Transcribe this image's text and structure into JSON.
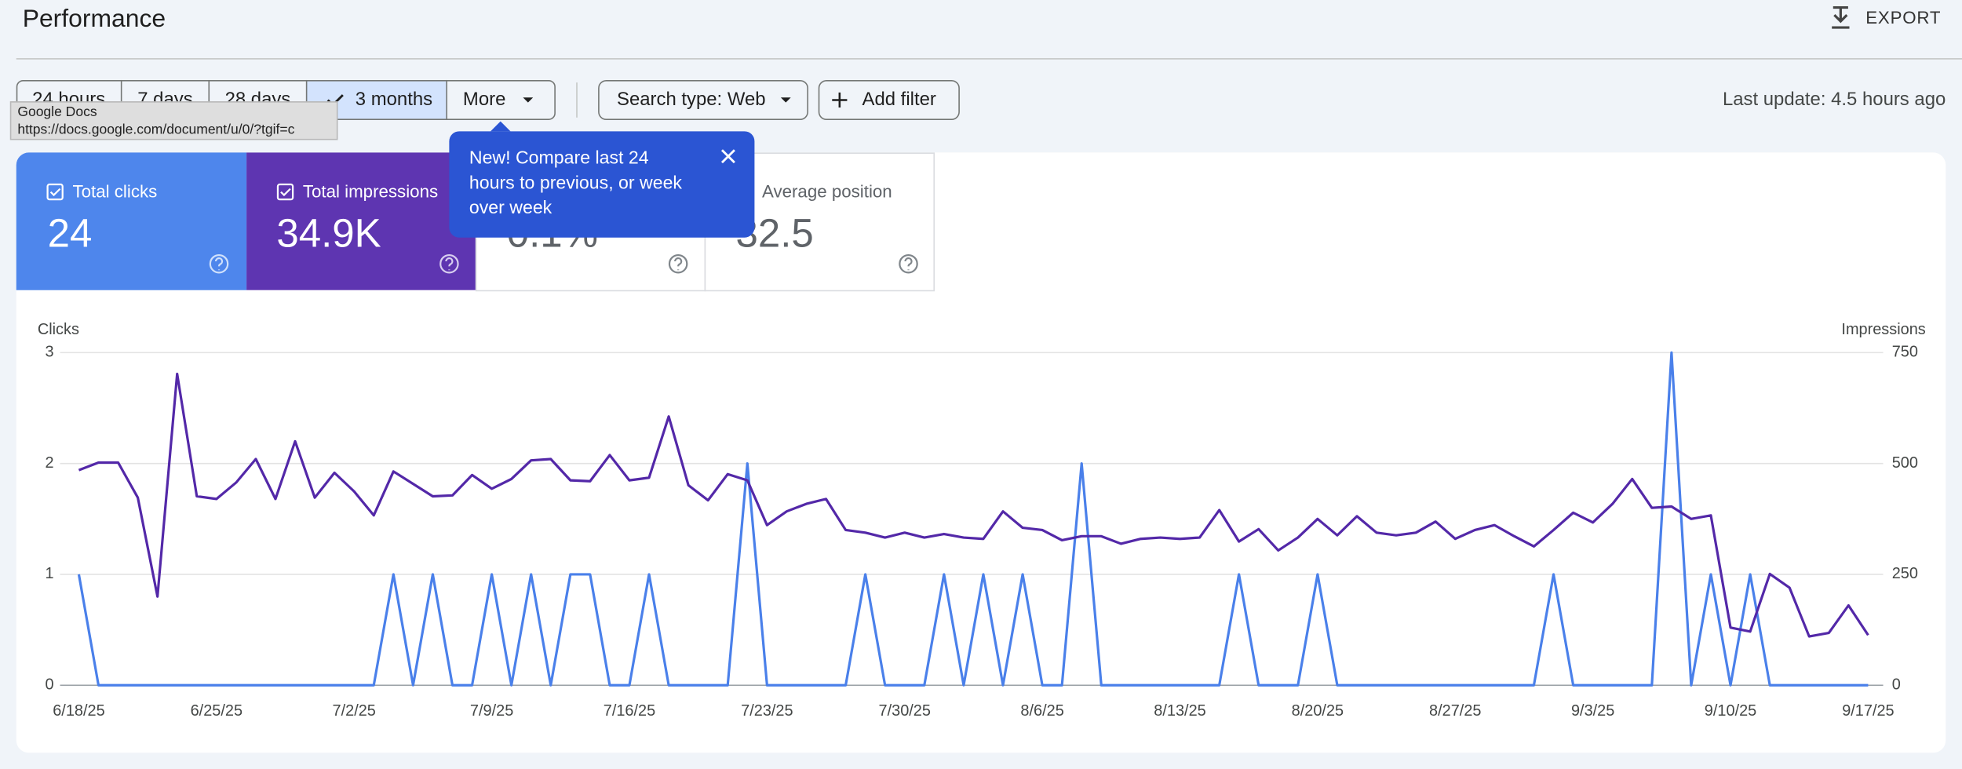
{
  "header": {
    "title": "Performance",
    "export": "EXPORT"
  },
  "date_filters": [
    "24 hours",
    "7 days",
    "28 days",
    "3 months",
    "More"
  ],
  "search_type": "Search type: Web",
  "add_filter": "Add filter",
  "last_update": "Last update: 4.5 hours ago",
  "link_tooltip": {
    "title": "Google Docs",
    "url": "https://docs.google.com/document/u/0/?tgif=c"
  },
  "metrics": [
    {
      "label": "Total clicks",
      "value": "24"
    },
    {
      "label": "Total impressions",
      "value": "34.9K"
    },
    {
      "value": "0.1%"
    },
    {
      "label": "Average position",
      "value": "32.5"
    }
  ],
  "popup": {
    "lines": [
      "New! Compare last 24",
      "hours to previous, or week",
      "over week"
    ]
  },
  "chart_data": {
    "type": "line",
    "categories": [
      "6/18/25",
      null,
      null,
      null,
      null,
      null,
      null,
      "6/25/25",
      null,
      null,
      null,
      null,
      null,
      null,
      "7/2/25",
      null,
      null,
      null,
      null,
      null,
      null,
      "7/9/25",
      null,
      null,
      null,
      null,
      null,
      null,
      "7/16/25",
      null,
      null,
      null,
      null,
      null,
      null,
      "7/23/25",
      null,
      null,
      null,
      null,
      null,
      null,
      "7/30/25",
      null,
      null,
      null,
      null,
      null,
      null,
      "8/6/25",
      null,
      null,
      null,
      null,
      null,
      null,
      "8/13/25",
      null,
      null,
      null,
      null,
      null,
      null,
      "8/20/25",
      null,
      null,
      null,
      null,
      null,
      null,
      "8/27/25",
      null,
      null,
      null,
      null,
      null,
      null,
      "9/3/25",
      null,
      null,
      null,
      null,
      null,
      null,
      "9/10/25",
      null,
      null,
      null,
      null,
      null,
      null,
      "9/17/25"
    ],
    "series": [
      {
        "name": "Clicks",
        "color": "#4a80ea",
        "values": [
          1,
          0,
          0,
          0,
          0,
          0,
          0,
          0,
          0,
          0,
          0,
          0,
          0,
          0,
          0,
          0,
          1,
          0,
          1,
          0,
          0,
          1,
          0,
          1,
          0,
          1,
          1,
          0,
          0,
          1,
          0,
          0,
          0,
          0,
          2,
          0,
          0,
          0,
          0,
          0,
          1,
          0,
          0,
          0,
          1,
          0,
          1,
          0,
          1,
          0,
          0,
          2,
          0,
          0,
          0,
          0,
          0,
          0,
          0,
          1,
          0,
          0,
          0,
          1,
          0,
          0,
          0,
          0,
          0,
          0,
          0,
          0,
          0,
          0,
          0,
          1,
          0,
          0,
          0,
          0,
          0,
          3,
          0,
          1,
          0,
          1,
          0,
          0,
          0,
          0,
          0,
          0
        ]
      },
      {
        "name": "Impressions",
        "color": "#5328a8",
        "axis": "y2",
        "values": [
          485,
          502,
          502,
          423,
          200,
          702,
          426,
          420,
          457,
          510,
          420,
          550,
          423,
          479,
          437,
          383,
          482,
          454,
          426,
          428,
          474,
          443,
          465,
          507,
          510,
          462,
          460,
          519,
          462,
          468,
          606,
          451,
          417,
          476,
          462,
          361,
          392,
          409,
          420,
          350,
          344,
          333,
          344,
          333,
          341,
          333,
          330,
          392,
          355,
          350,
          327,
          336,
          336,
          319,
          330,
          333,
          330,
          333,
          395,
          324,
          352,
          304,
          333,
          375,
          338,
          381,
          344,
          338,
          344,
          369,
          330,
          350,
          361,
          336,
          313,
          350,
          389,
          367,
          409,
          465,
          400,
          403,
          375,
          383,
          130,
          121,
          251,
          220,
          110,
          118,
          180,
          113
        ]
      }
    ],
    "ylim": [
      0,
      3
    ],
    "yticks": [
      0,
      1,
      2,
      3
    ],
    "y2lim": [
      0,
      750
    ],
    "y2ticks": [
      0,
      250,
      500,
      750
    ],
    "grid": true
  }
}
